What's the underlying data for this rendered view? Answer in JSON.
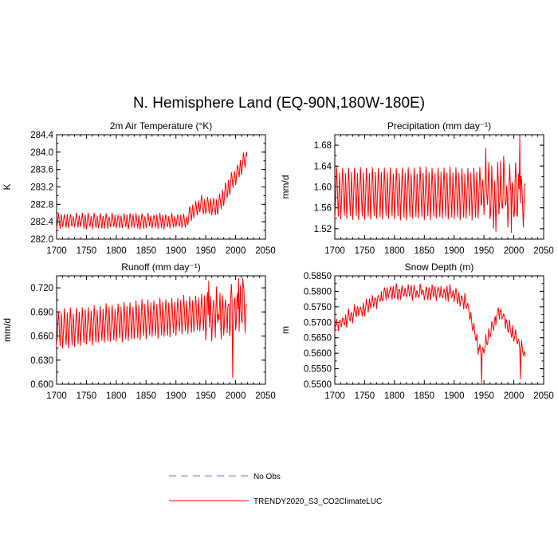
{
  "figure": {
    "title": "N. Hemisphere Land (EQ-90N,180W-180E)",
    "line_color": "#ff0000",
    "obs_color": "#7070ee"
  },
  "legend": {
    "entries": [
      {
        "label": "No Obs",
        "style": "dashed",
        "color": "#7070ee"
      },
      {
        "label": "TRENDY2020_S3_CO2ClimateLUC",
        "style": "solid",
        "color": "#ff0000"
      }
    ]
  },
  "chart_data": [
    {
      "type": "line",
      "id": "temp",
      "title": "2m Air Temperature (°K)",
      "ylabel": "K",
      "xlim": [
        1700,
        2050
      ],
      "ylim": [
        282.0,
        284.4
      ],
      "x_ticks": [
        1700,
        1750,
        1800,
        1850,
        1900,
        1950,
        2000,
        2050
      ],
      "x_tick_labels": [
        "1700",
        "1750",
        "1800",
        "1850",
        "1900",
        "1950",
        "2000",
        "2050"
      ],
      "y_ticks": [
        282.0,
        282.4,
        282.8,
        283.2,
        283.6,
        284.0,
        284.4
      ],
      "y_tick_labels": [
        "282.0",
        "282.4",
        "282.8",
        "283.2",
        "283.6",
        "284.0",
        "284.4"
      ],
      "series": [
        {
          "name": "TRENDY2020_S3_CO2ClimateLUC",
          "x": [],
          "values": []
        }
      ]
    },
    {
      "type": "line",
      "id": "precip",
      "title": "Precipitation (mm day⁻¹)",
      "ylabel": "mm/d",
      "xlim": [
        1700,
        2050
      ],
      "ylim": [
        1.5,
        1.7
      ],
      "x_ticks": [
        1700,
        1750,
        1800,
        1850,
        1900,
        1950,
        2000,
        2050
      ],
      "x_tick_labels": [
        "1700",
        "1750",
        "1800",
        "1850",
        "1900",
        "1950",
        "2000",
        "2050"
      ],
      "y_ticks": [
        1.52,
        1.56,
        1.6,
        1.64,
        1.68
      ],
      "y_tick_labels": [
        "1.52",
        "1.56",
        "1.60",
        "1.64",
        "1.68"
      ],
      "series": [
        {
          "name": "TRENDY2020_S3_CO2ClimateLUC",
          "x": [],
          "values": []
        }
      ]
    },
    {
      "type": "line",
      "id": "runoff",
      "title": "Runoff (mm day⁻¹)",
      "ylabel": "mm/d",
      "xlim": [
        1700,
        2050
      ],
      "ylim": [
        0.6,
        0.735
      ],
      "x_ticks": [
        1700,
        1750,
        1800,
        1850,
        1900,
        1950,
        2000,
        2050
      ],
      "x_tick_labels": [
        "1700",
        "1750",
        "1800",
        "1850",
        "1900",
        "1950",
        "2000",
        "2050"
      ],
      "y_ticks": [
        0.6,
        0.63,
        0.66,
        0.69,
        0.72
      ],
      "y_tick_labels": [
        "0.600",
        "0.630",
        "0.660",
        "0.690",
        "0.720"
      ],
      "series": [
        {
          "name": "TRENDY2020_S3_CO2ClimateLUC",
          "x": [],
          "values": []
        }
      ]
    },
    {
      "type": "line",
      "id": "snow",
      "title": "Snow Depth (m)",
      "ylabel": "m",
      "xlim": [
        1700,
        2050
      ],
      "ylim": [
        0.55,
        0.585
      ],
      "x_ticks": [
        1700,
        1750,
        1800,
        1850,
        1900,
        1950,
        2000,
        2050
      ],
      "x_tick_labels": [
        "1700",
        "1750",
        "1800",
        "1850",
        "1900",
        "1950",
        "2000",
        "2050"
      ],
      "y_ticks": [
        0.55,
        0.555,
        0.56,
        0.565,
        0.57,
        0.575,
        0.58,
        0.585
      ],
      "y_tick_labels": [
        "0.5500",
        "0.5550",
        "0.5600",
        "0.5650",
        "0.5700",
        "0.5750",
        "0.5800",
        "0.5850"
      ],
      "series": [
        {
          "name": "TRENDY2020_S3_CO2ClimateLUC",
          "x": [],
          "values": []
        }
      ]
    }
  ]
}
